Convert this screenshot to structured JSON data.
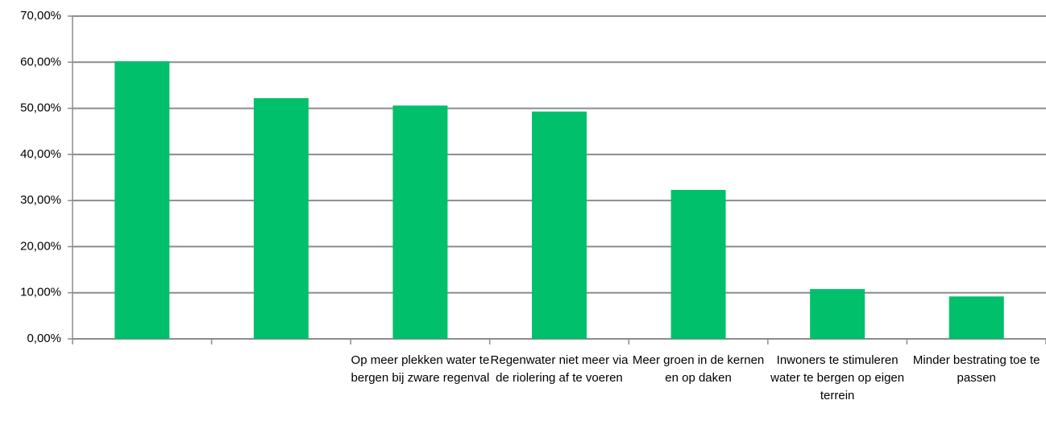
{
  "chart_data": {
    "type": "bar",
    "categories": [
      null,
      null,
      "Op meer plekken water te bergen bij zware regenval",
      "Regenwater niet meer via de riolering af te voeren",
      "Meer groen in de kernen en op daken",
      "Inwoners te stimuleren water te bergen op eigen terrein",
      "Minder bestrating toe te passen"
    ],
    "values": [
      60.2,
      52.2,
      50.6,
      49.3,
      32.3,
      10.8,
      9.2
    ],
    "color": "#00c06b",
    "ylim": [
      0,
      70
    ],
    "yticks": [
      {
        "value": 0,
        "label": "0,00%"
      },
      {
        "value": 10,
        "label": "10,00%"
      },
      {
        "value": 20,
        "label": "20,00%"
      },
      {
        "value": 30,
        "label": "30,00%"
      },
      {
        "value": 40,
        "label": "40,00%"
      },
      {
        "value": 50,
        "label": "50,00%"
      },
      {
        "value": 60,
        "label": "60,00%"
      },
      {
        "value": 70,
        "label": "70,00%"
      }
    ],
    "grid": true
  }
}
